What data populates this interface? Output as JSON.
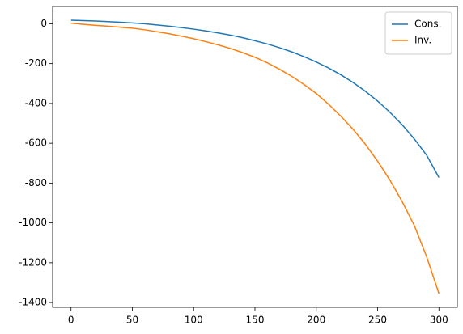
{
  "chart_data": {
    "type": "line",
    "x": [
      0,
      10,
      20,
      30,
      40,
      50,
      60,
      70,
      80,
      90,
      100,
      110,
      120,
      130,
      140,
      150,
      160,
      170,
      180,
      190,
      200,
      210,
      220,
      230,
      240,
      250,
      260,
      270,
      280,
      290,
      300
    ],
    "series": [
      {
        "name": "Cons.",
        "color": "#1f77b4",
        "values": [
          18,
          16,
          14,
          11,
          8,
          4,
          0,
          -6,
          -12,
          -19,
          -27,
          -36,
          -46,
          -57,
          -70,
          -85,
          -101,
          -120,
          -141,
          -165,
          -192,
          -222,
          -256,
          -295,
          -339,
          -388,
          -444,
          -507,
          -579,
          -660,
          -772
        ]
      },
      {
        "name": "Inv.",
        "color": "#ff7f0e",
        "values": [
          3,
          -3,
          -8,
          -12,
          -17,
          -22,
          -30,
          -40,
          -50,
          -62,
          -75,
          -90,
          -106,
          -124,
          -145,
          -168,
          -196,
          -228,
          -264,
          -305,
          -350,
          -404,
          -464,
          -530,
          -605,
          -690,
          -785,
          -893,
          -1014,
          -1170,
          -1355
        ]
      }
    ],
    "xlim": [
      -15,
      315
    ],
    "xticks": [
      0,
      50,
      100,
      150,
      200,
      250,
      300
    ],
    "ylim": [
      -1424,
      87
    ],
    "yticks": [
      0,
      -200,
      -400,
      -600,
      -800,
      -1000,
      -1200,
      -1400
    ],
    "legend": "upper right"
  }
}
